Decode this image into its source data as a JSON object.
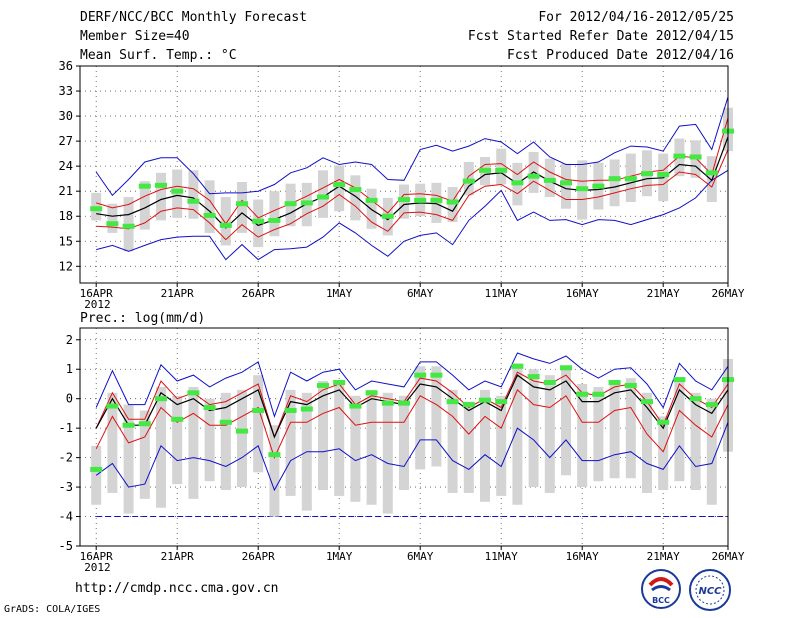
{
  "header": {
    "title": "DERF/NCC/BCC Monthly Forecast",
    "member_size": "Member Size=40",
    "variable": "Mean Surf. Temp.: °C",
    "period": "For 2012/04/16-2012/05/25",
    "start_date": "Fcst Started Refer Date 2012/04/15",
    "produced_date": "Fcst Produced Date 2012/04/16"
  },
  "footer": {
    "url": "http://cmdp.ncc.cma.gov.cn",
    "credit": "GrADS: COLA/IGES",
    "logo_left": "BCC",
    "logo_right": "NCC"
  },
  "colors": {
    "ensemble_mean": "#000000",
    "std_band": "#e01010",
    "min_max": "#1010c8",
    "observed": "#44e844",
    "box": "#d4d4d4"
  },
  "chart_data": [
    {
      "type": "line",
      "name": "temperature",
      "title": "",
      "ylabel": "Mean Surf. Temp.: °C",
      "ylim": [
        10,
        36
      ],
      "yticks": [
        12,
        15,
        18,
        21,
        24,
        27,
        30,
        33,
        36
      ],
      "x": [
        1,
        2,
        3,
        4,
        5,
        6,
        7,
        8,
        9,
        10,
        11,
        12,
        13,
        14,
        15,
        16,
        17,
        18,
        19,
        20,
        21,
        22,
        23,
        24,
        25,
        26,
        27,
        28,
        29,
        30,
        31,
        32,
        33,
        34,
        35,
        36,
        37,
        38,
        39,
        40
      ],
      "xlim": [
        0,
        40
      ],
      "xticks": [
        {
          "day": 1,
          "label": "16APR",
          "sub": "2012"
        },
        {
          "day": 6,
          "label": "21APR"
        },
        {
          "day": 11,
          "label": "26APR"
        },
        {
          "day": 16,
          "label": "1MAY"
        },
        {
          "day": 21,
          "label": "6MAY"
        },
        {
          "day": 26,
          "label": "11MAY"
        },
        {
          "day": 31,
          "label": "16MAY"
        },
        {
          "day": 36,
          "label": "21MAY"
        },
        {
          "day": 40,
          "label": "26MAY"
        }
      ],
      "grid": true,
      "series": [
        {
          "name": "max",
          "values": [
            14,
            14.5,
            13.8,
            14.5,
            15.2,
            15.5,
            15.6,
            15.6,
            12.8,
            14.6,
            12.8,
            14,
            14.1,
            14.3,
            15.5,
            17.2,
            16,
            14.5,
            13.2,
            15,
            15.7,
            16,
            14.6,
            17.5,
            19.2,
            21.1,
            17.5,
            18.5,
            17.5,
            17.6,
            17,
            17.6,
            17.5,
            17,
            17.6,
            18.2,
            19,
            20.2,
            22.3,
            23.5
          ]
        },
        {
          "name": "mean_plus_std",
          "values": [
            19.6,
            19,
            19.4,
            20.4,
            21.2,
            21.6,
            21.3,
            19.9,
            17.1,
            19.9,
            17.8,
            18.7,
            19.5,
            20.4,
            21.4,
            22.4,
            21.4,
            19.9,
            18.4,
            20.6,
            20.7,
            20.5,
            19.8,
            22.8,
            24.2,
            24.3,
            23,
            24.5,
            23.3,
            22.4,
            22.2,
            22.3,
            22.3,
            22.8,
            23.3,
            23.5,
            25.2,
            25,
            23,
            29.8
          ]
        },
        {
          "name": "mean",
          "values": [
            18.3,
            18,
            18.2,
            19,
            20,
            20.5,
            20.2,
            18.6,
            16.6,
            18.4,
            16.9,
            17.6,
            18.4,
            19.5,
            20.3,
            21.6,
            20.4,
            18.8,
            17.6,
            19.4,
            19.6,
            19.5,
            18.6,
            21.6,
            23,
            23.2,
            21.9,
            23.3,
            22.2,
            21.3,
            21.1,
            21.2,
            21.5,
            22,
            22.5,
            22.6,
            24.2,
            24,
            22.3,
            27.5
          ]
        },
        {
          "name": "mean_minus_std",
          "values": [
            16.8,
            16.7,
            16.5,
            17.2,
            18.6,
            19,
            18.8,
            17.2,
            15.2,
            17,
            15.5,
            16.4,
            17.1,
            18.3,
            19.2,
            20.6,
            19.2,
            17.3,
            16.2,
            18.4,
            18.5,
            18.2,
            17.5,
            20.5,
            21.6,
            21.8,
            20.7,
            22.2,
            21.1,
            20,
            20,
            20.3,
            20.8,
            21.3,
            21.7,
            21.8,
            23.3,
            23,
            21.5,
            26
          ]
        },
        {
          "name": "min",
          "values": [
            23.3,
            20.5,
            22.4,
            24.5,
            25,
            25,
            23.1,
            20.7,
            20.8,
            20.8,
            21,
            21.8,
            23.2,
            23.8,
            25,
            24.2,
            24.5,
            24.2,
            22.4,
            22.3,
            26,
            26.5,
            25.8,
            26.4,
            27.3,
            26.9,
            25.5,
            26.9,
            25.1,
            24.2,
            24.2,
            24.5,
            25.6,
            26.4,
            26.3,
            25.8,
            28.8,
            29,
            26,
            32.3
          ]
        },
        {
          "name": "observed",
          "values": [
            18.9,
            17.1,
            16.8,
            21.6,
            21.7,
            21.0,
            19.8,
            18.1,
            16.9,
            19.5,
            17.4,
            17.5,
            19.5,
            19.6,
            20.3,
            21.8,
            21.2,
            19.9,
            18,
            20,
            19.9,
            19.9,
            19.7,
            22.2,
            23.5,
            23.5,
            22.0,
            22.8,
            22.3,
            22.0,
            21.3,
            21.6,
            22.5,
            22.5,
            23.1,
            23.0,
            25.2,
            25.1,
            23.2,
            28.2
          ]
        },
        {
          "name": "box_low",
          "values": [
            17.5,
            16,
            13.8,
            16.4,
            17.5,
            17.8,
            17.7,
            16,
            14.5,
            16,
            14.3,
            15.6,
            16.8,
            16.8,
            17.8,
            18.6,
            17.5,
            16.5,
            15.7,
            17.7,
            18,
            17.2,
            17.3,
            20.5,
            21.7,
            21.8,
            19.3,
            20.8,
            20.3,
            18.9,
            17.6,
            18.8,
            19.2,
            19.7,
            20.4,
            19.8,
            22.8,
            22.6,
            19.7,
            25.8
          ]
        },
        {
          "name": "box_high",
          "values": [
            20.8,
            19.5,
            20.3,
            22.2,
            23.2,
            23.6,
            23.5,
            22.3,
            20.3,
            22.1,
            20,
            21,
            21.9,
            22,
            23.5,
            24.1,
            22.9,
            21.3,
            20.2,
            21.8,
            21.9,
            22,
            21.5,
            24.5,
            25.1,
            26.1,
            24.4,
            25.7,
            24.9,
            24.3,
            24.7,
            24.4,
            24.8,
            25.5,
            25.9,
            25.5,
            27.3,
            27.1,
            25.2,
            31
          ]
        }
      ]
    },
    {
      "type": "line",
      "name": "precipitation",
      "title": "Prec.: log(mm/d)",
      "ylabel": "Prec.: log(mm/d)",
      "ylim": [
        -5,
        2.4
      ],
      "yticks": [
        -5,
        -4,
        -3,
        -2,
        -1,
        0,
        1,
        2
      ],
      "x": [
        1,
        2,
        3,
        4,
        5,
        6,
        7,
        8,
        9,
        10,
        11,
        12,
        13,
        14,
        15,
        16,
        17,
        18,
        19,
        20,
        21,
        22,
        23,
        24,
        25,
        26,
        27,
        28,
        29,
        30,
        31,
        32,
        33,
        34,
        35,
        36,
        37,
        38,
        39,
        40
      ],
      "xlim": [
        0,
        40
      ],
      "xticks": [
        {
          "day": 1,
          "label": "16APR",
          "sub": "2012"
        },
        {
          "day": 6,
          "label": "21APR"
        },
        {
          "day": 11,
          "label": "26APR"
        },
        {
          "day": 16,
          "label": "1MAY"
        },
        {
          "day": 21,
          "label": "6MAY"
        },
        {
          "day": 26,
          "label": "11MAY"
        },
        {
          "day": 31,
          "label": "16MAY"
        },
        {
          "day": 36,
          "label": "21MAY"
        },
        {
          "day": 40,
          "label": "26MAY"
        }
      ],
      "grid": true,
      "reference_line": -4,
      "series": [
        {
          "name": "max",
          "values": [
            -0.3,
            0.95,
            -0.2,
            -0.2,
            1.15,
            0.6,
            0.8,
            0.4,
            0.7,
            0.9,
            1.25,
            -0.6,
            0.9,
            0.6,
            0.9,
            1.0,
            0.3,
            0.6,
            0.5,
            0.4,
            1.25,
            1.25,
            0.8,
            0.3,
            0.6,
            0.4,
            1.55,
            1.35,
            1.2,
            1.45,
            1.0,
            0.7,
            1.0,
            1.05,
            0.5,
            -0.3,
            1.2,
            0.6,
            0.3,
            1.1
          ]
        },
        {
          "name": "mean_plus_std",
          "values": [
            -1.0,
            0.2,
            -0.7,
            -0.7,
            0.6,
            0.0,
            0.2,
            -0.2,
            -0.1,
            0.2,
            0.5,
            -1.3,
            0.1,
            -0.1,
            0.3,
            0.5,
            -0.2,
            0.1,
            0.0,
            -0.1,
            0.7,
            0.6,
            0.2,
            -0.3,
            0.0,
            -0.3,
            0.9,
            0.6,
            0.5,
            0.8,
            0.2,
            0.1,
            0.4,
            0.5,
            -0.1,
            -0.9,
            0.5,
            0.0,
            -0.3,
            0.5
          ]
        },
        {
          "name": "mean",
          "values": [
            -1.0,
            0.0,
            -0.9,
            -0.9,
            0.2,
            -0.2,
            0.0,
            -0.4,
            -0.3,
            0.0,
            0.3,
            -1.3,
            -0.1,
            -0.2,
            0.1,
            0.3,
            -0.3,
            0.0,
            -0.1,
            -0.2,
            0.5,
            0.4,
            0.0,
            -0.4,
            -0.1,
            -0.4,
            0.8,
            0.4,
            0.3,
            0.6,
            -0.1,
            -0.1,
            0.2,
            0.3,
            -0.3,
            -1.0,
            0.3,
            -0.2,
            -0.5,
            0.3
          ]
        },
        {
          "name": "mean_minus_std",
          "values": [
            -1.7,
            -0.6,
            -1.5,
            -1.3,
            -0.3,
            -0.8,
            -0.5,
            -0.9,
            -0.9,
            -0.6,
            -0.3,
            -2.0,
            -0.8,
            -0.8,
            -0.5,
            -0.3,
            -0.9,
            -0.8,
            -0.8,
            -0.8,
            0.1,
            -0.2,
            -0.6,
            -1.2,
            -0.6,
            -1.0,
            0.3,
            -0.2,
            -0.3,
            0.1,
            -0.8,
            -0.8,
            -0.4,
            -0.3,
            -1.2,
            -1.8,
            -0.4,
            -0.9,
            -1.3,
            -0.2
          ]
        },
        {
          "name": "min",
          "values": [
            -2.6,
            -2.2,
            -3.0,
            -2.9,
            -1.6,
            -2.1,
            -2.0,
            -2.1,
            -2.3,
            -2.0,
            -1.6,
            -3.1,
            -2.1,
            -1.8,
            -1.8,
            -1.7,
            -2.1,
            -1.9,
            -2.2,
            -2.3,
            -1.4,
            -1.4,
            -2.1,
            -2.4,
            -1.9,
            -2.3,
            -1.0,
            -1.4,
            -2.0,
            -1.4,
            -2.1,
            -2.1,
            -1.9,
            -1.8,
            -2.2,
            -2.4,
            -1.6,
            -2.3,
            -2.2,
            -0.8
          ]
        },
        {
          "name": "observed",
          "values": [
            -2.4,
            -0.25,
            -0.9,
            -0.85,
            0.0,
            -0.7,
            0.2,
            -0.3,
            -0.8,
            -1.1,
            -0.4,
            -1.9,
            -0.4,
            -0.35,
            0.45,
            0.55,
            -0.25,
            0.2,
            -0.15,
            -0.15,
            0.8,
            0.8,
            -0.1,
            -0.2,
            -0.05,
            -0.1,
            1.1,
            0.75,
            0.55,
            1.05,
            0.15,
            0.15,
            0.55,
            0.45,
            -0.1,
            -0.8,
            0.65,
            0.0,
            -0.2,
            0.65
          ]
        },
        {
          "name": "box_low",
          "values": [
            -3.6,
            -3.2,
            -3.9,
            -3.4,
            -3.7,
            -2.9,
            -3.4,
            -2.8,
            -3.1,
            -3.0,
            -2.5,
            -4.0,
            -3.3,
            -3.8,
            -3.1,
            -3.3,
            -3.5,
            -3.6,
            -3.9,
            -3.1,
            -2.4,
            -2.3,
            -3.2,
            -3.2,
            -3.5,
            -3.3,
            -3.6,
            -3.0,
            -3.2,
            -2.6,
            -3.0,
            -2.8,
            -2.7,
            -2.7,
            -3.2,
            -3.1,
            -2.8,
            -3.1,
            -3.6,
            -1.8
          ]
        },
        {
          "name": "box_high",
          "values": [
            -1.6,
            0.2,
            -0.2,
            -0.4,
            0.4,
            0.1,
            0.4,
            0.0,
            0.2,
            0.3,
            0.8,
            -0.9,
            0.3,
            0.2,
            0.6,
            0.6,
            0.1,
            0.3,
            0.2,
            0.1,
            1.1,
            1.1,
            0.3,
            -0.1,
            0.3,
            0.1,
            1.2,
            1.0,
            0.8,
            1.1,
            0.5,
            0.4,
            0.6,
            0.7,
            0.2,
            -0.6,
            0.7,
            0.2,
            0.0,
            1.35
          ]
        }
      ]
    }
  ]
}
